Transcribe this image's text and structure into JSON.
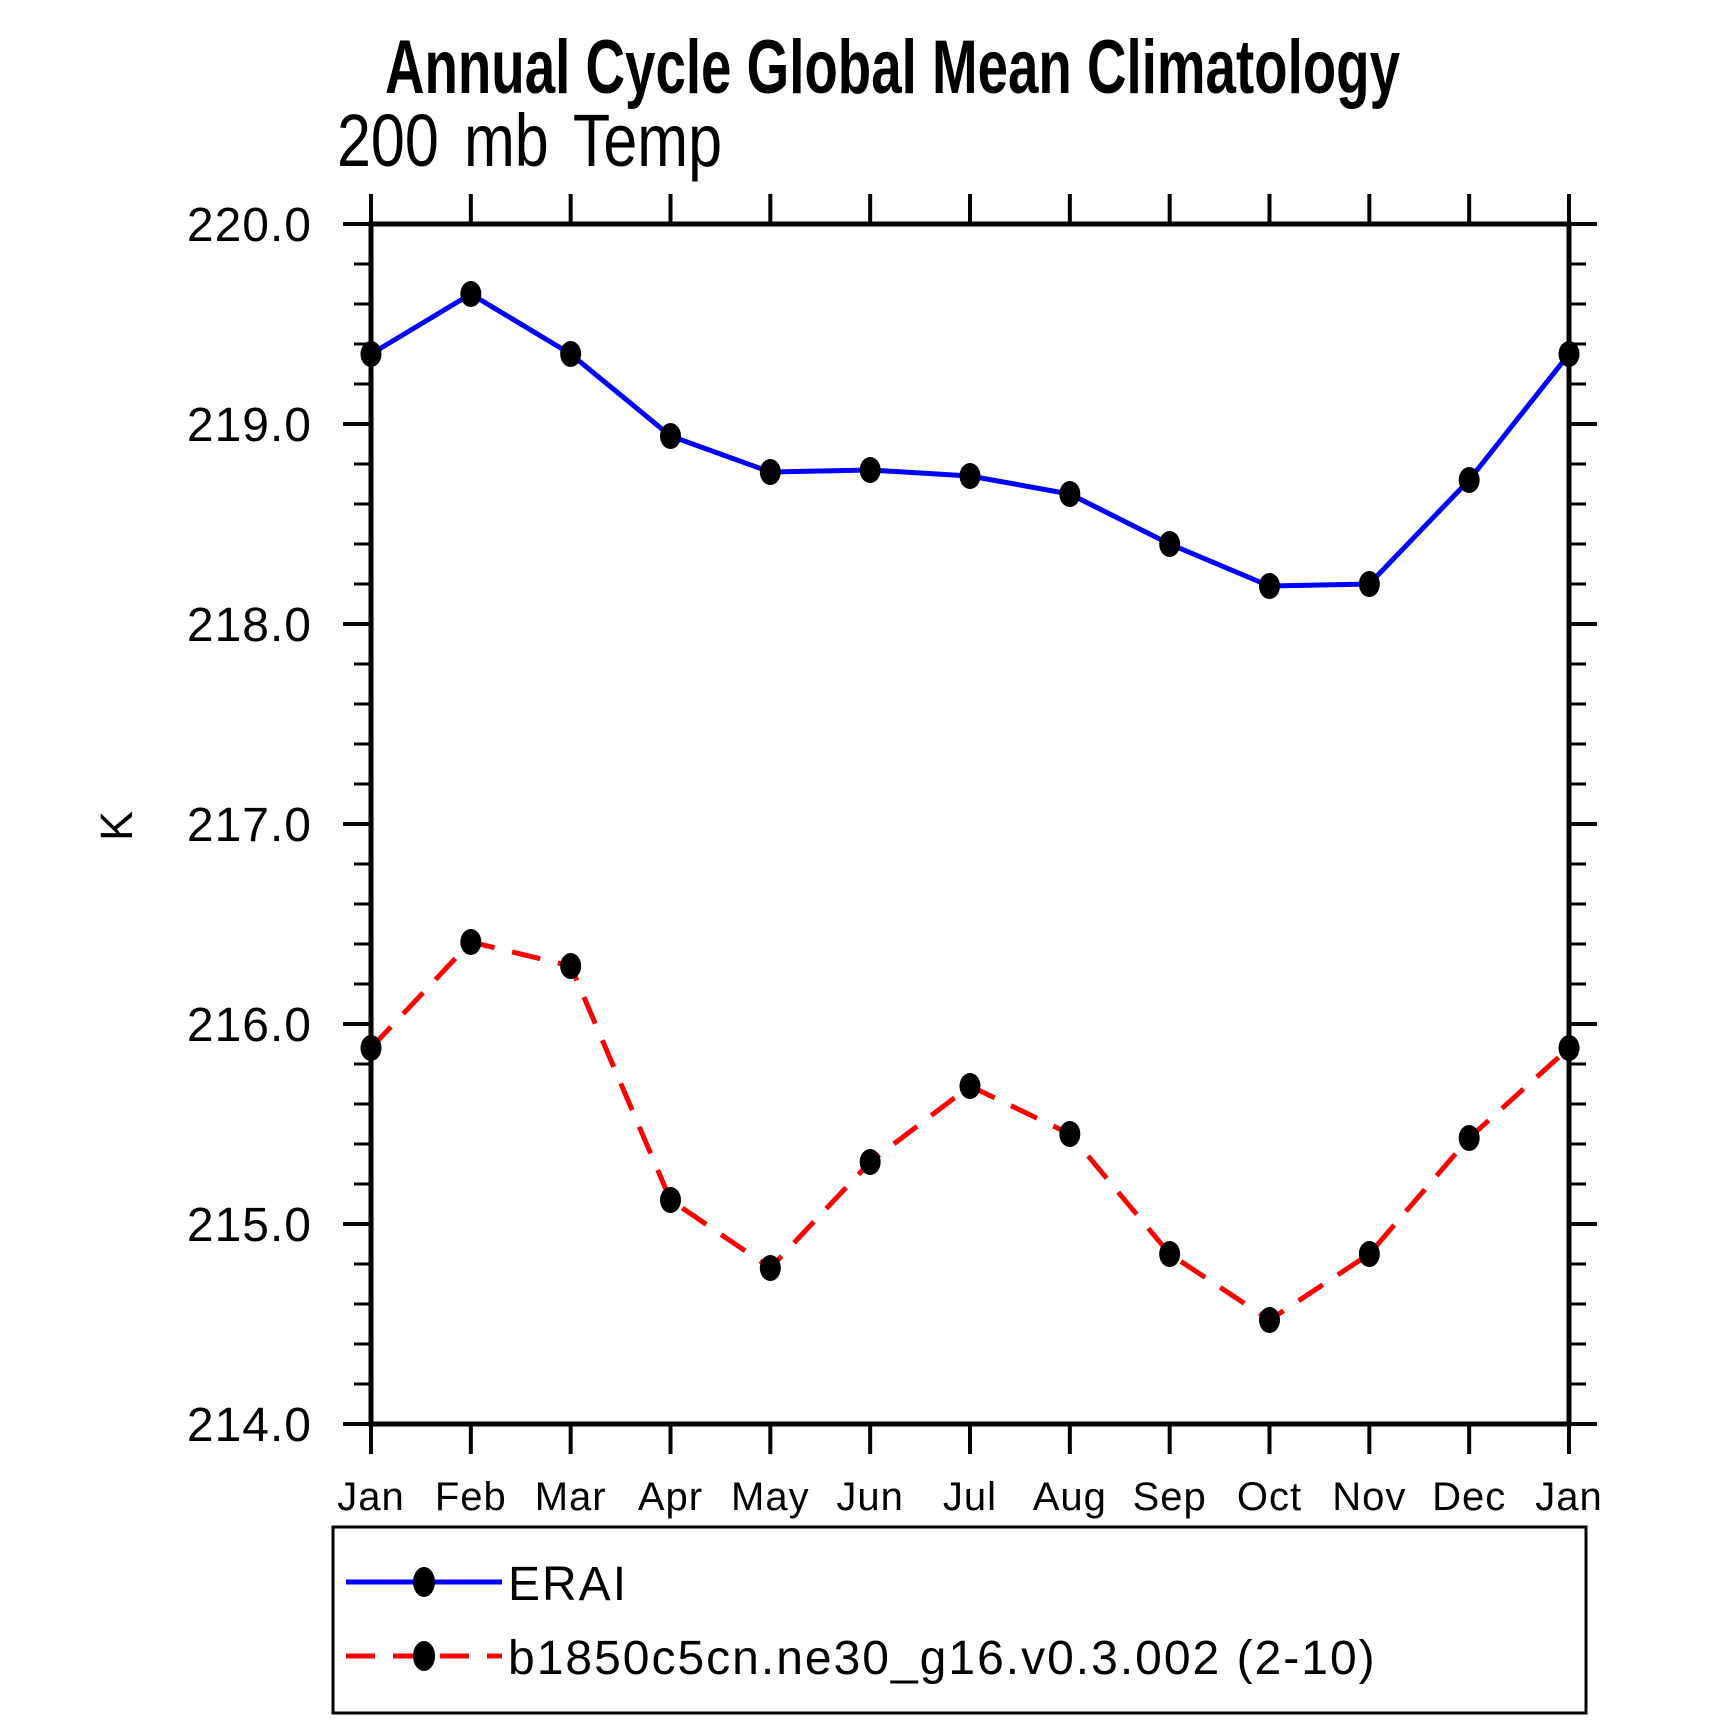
{
  "chart_data": {
    "type": "line",
    "title": "Annual Cycle Global Mean Climatology",
    "subtitle": "200 mb Temp",
    "ylabel": "K",
    "xlabel": "",
    "categories": [
      "Jan",
      "Feb",
      "Mar",
      "Apr",
      "May",
      "Jun",
      "Jul",
      "Aug",
      "Sep",
      "Oct",
      "Nov",
      "Dec",
      "Jan"
    ],
    "ylim": [
      214.0,
      220.0
    ],
    "y_tick_step": 1.0,
    "y_minor_step": 0.2,
    "y_tick_labels": [
      "220.0",
      "219.0",
      "218.0",
      "217.0",
      "216.0",
      "215.0",
      "214.0"
    ],
    "grid": false,
    "legend_position": "bottom-left-box",
    "axis_color": "#000000",
    "marker_color": "#000000",
    "series": [
      {
        "name": "ERAI",
        "color": "#0000ff",
        "line_style": "solid",
        "marker": "filled-circle",
        "values": [
          219.35,
          219.65,
          219.35,
          218.94,
          218.76,
          218.77,
          218.74,
          218.65,
          218.4,
          218.19,
          218.2,
          218.72,
          219.35
        ]
      },
      {
        "name": "b1850c5cn.ne30_g16.v0.3.002 (2-10)",
        "color": "#ff0000",
        "line_style": "dashed",
        "marker": "filled-circle",
        "values": [
          215.88,
          216.41,
          216.29,
          215.12,
          214.78,
          215.31,
          215.69,
          215.45,
          214.85,
          214.52,
          214.85,
          215.43,
          215.88
        ]
      }
    ]
  }
}
